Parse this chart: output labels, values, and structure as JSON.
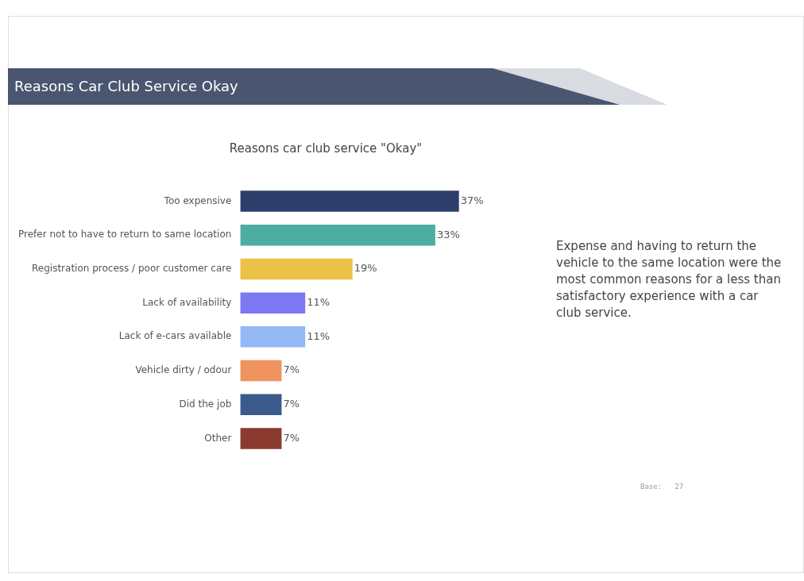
{
  "chart_data": {
    "type": "bar",
    "orientation": "horizontal",
    "title": "Reasons Car Club Service Okay",
    "subtitle": "Reasons car club service \"Okay\"",
    "categories": [
      "Too expensive",
      "Prefer not to have to return to same location",
      "Registration process / poor customer care",
      "Lack of availability",
      "Lack of e-cars available",
      "Vehicle dirty / odour",
      "Did the job",
      "Other"
    ],
    "values": [
      37,
      33,
      19,
      11,
      11,
      7,
      7,
      7
    ],
    "value_labels": [
      "37%",
      "33%",
      "19%",
      "11%",
      "11%",
      "7%",
      "7%",
      "7%"
    ],
    "colors": [
      "#2d3e6b",
      "#4cada3",
      "#ecc246",
      "#7b78f2",
      "#93b8f5",
      "#f0935e",
      "#3b5a8c",
      "#8b3a30"
    ],
    "legend": false,
    "annotations": [
      "Expense and having to return the vehicle to the same location were the most common reasons for a less than satisfactory experience with a car club service.",
      "Base:   27"
    ]
  }
}
